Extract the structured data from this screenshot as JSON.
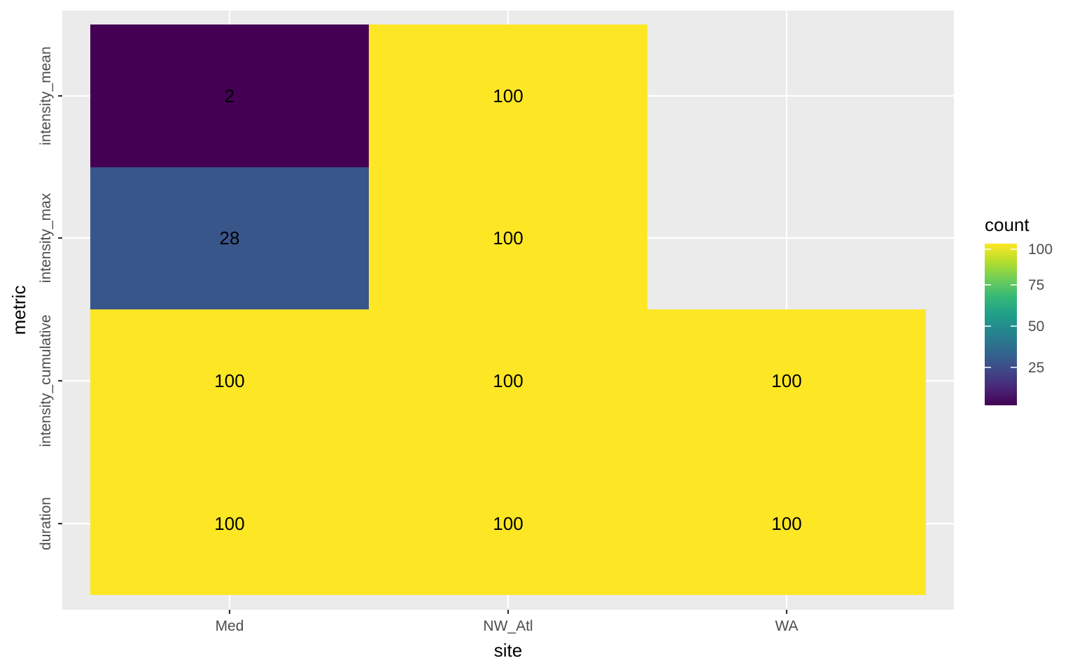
{
  "chart_data": {
    "type": "heatmap",
    "title": "",
    "xlabel": "site",
    "ylabel": "metric",
    "x_categories": [
      "Med",
      "NW_Atl",
      "WA"
    ],
    "y_categories": [
      "duration",
      "intensity_cumulative",
      "intensity_max",
      "intensity_mean"
    ],
    "cells": [
      {
        "x": "Med",
        "y": "duration",
        "value": 100,
        "label": "100"
      },
      {
        "x": "Med",
        "y": "intensity_cumulative",
        "value": 100,
        "label": "100"
      },
      {
        "x": "Med",
        "y": "intensity_max",
        "value": 28,
        "label": "28"
      },
      {
        "x": "Med",
        "y": "intensity_mean",
        "value": 2,
        "label": "2"
      },
      {
        "x": "NW_Atl",
        "y": "duration",
        "value": 100,
        "label": "100"
      },
      {
        "x": "NW_Atl",
        "y": "intensity_cumulative",
        "value": 100,
        "label": "100"
      },
      {
        "x": "NW_Atl",
        "y": "intensity_max",
        "value": 100,
        "label": "100"
      },
      {
        "x": "NW_Atl",
        "y": "intensity_mean",
        "value": 100,
        "label": "100"
      },
      {
        "x": "WA",
        "y": "duration",
        "value": 100,
        "label": "100"
      },
      {
        "x": "WA",
        "y": "intensity_cumulative",
        "value": 100,
        "label": "100"
      }
    ],
    "legend": {
      "title": "count",
      "placement": "right",
      "min": 2,
      "max": 100,
      "ticks": [
        25,
        50,
        75,
        100
      ],
      "palette": "viridis"
    },
    "colors": {
      "panel_background": "#ebebeb",
      "grid": "#ffffff",
      "viridis_stops": [
        "#440154",
        "#482878",
        "#3e4a89",
        "#31688e",
        "#26828e",
        "#1f9e89",
        "#35b779",
        "#6dcd59",
        "#b4de2c",
        "#fde725"
      ]
    },
    "grid": true
  }
}
